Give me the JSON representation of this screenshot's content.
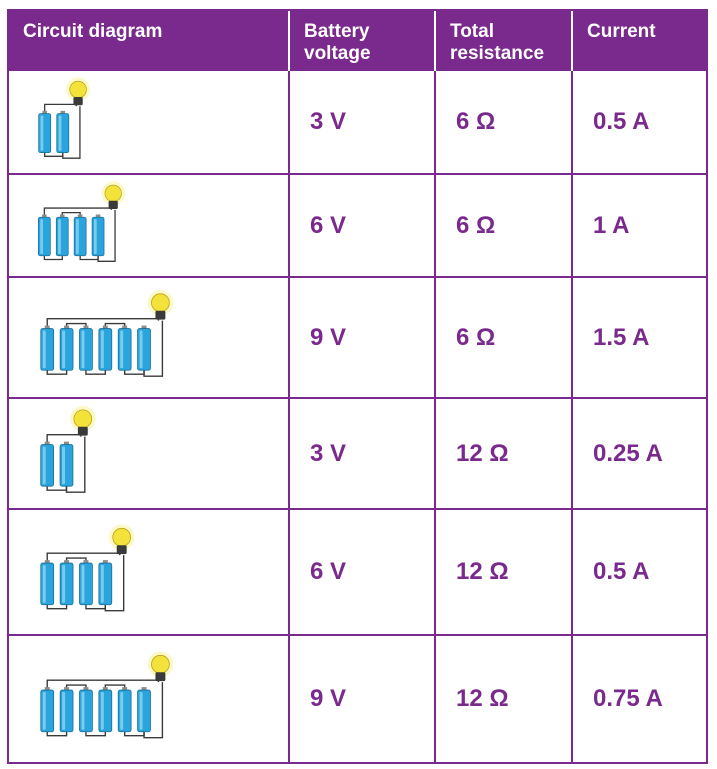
{
  "header": {
    "col1": "Circuit diagram",
    "col2_line1": "Battery",
    "col2_line2": "voltage",
    "col3_line1": "Total",
    "col3_line2": "resistance",
    "col4": "Current"
  },
  "rows": [
    {
      "cells": 2,
      "voltage": "3 V",
      "resistance": "6 Ω",
      "current": "0.5 A"
    },
    {
      "cells": 4,
      "voltage": "6 V",
      "resistance": "6 Ω",
      "current": "1 A"
    },
    {
      "cells": 6,
      "voltage": "9 V",
      "resistance": "6 Ω",
      "current": "1.5 A"
    },
    {
      "cells": 2,
      "voltage": "3 V",
      "resistance": "12 Ω",
      "current": "0.25 A"
    },
    {
      "cells": 4,
      "voltage": "6 V",
      "resistance": "12 Ω",
      "current": "0.5 A"
    },
    {
      "cells": 6,
      "voltage": "9 V",
      "resistance": "12 Ω",
      "current": "0.75 A"
    }
  ],
  "colors": {
    "header_bg": "#7a2a8c",
    "text_accent": "#7a2a8c",
    "battery": "#2aa4dc",
    "bulb": "#f3e23a"
  },
  "icons": [
    "battery-cell-icon",
    "light-bulb-icon"
  ]
}
